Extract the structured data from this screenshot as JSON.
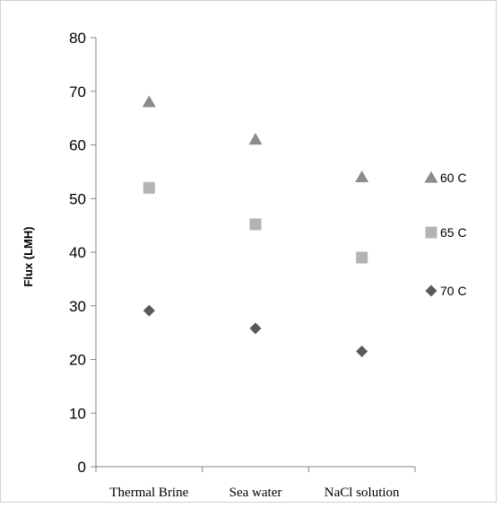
{
  "chart_data": {
    "type": "scatter",
    "title": "",
    "xlabel": "",
    "ylabel": "Flux (LMH)",
    "categories": [
      "Thermal Brine",
      "Sea water",
      "NaCl solution"
    ],
    "ylim": [
      0,
      80
    ],
    "yticks": [
      0,
      10,
      20,
      30,
      40,
      50,
      60,
      70,
      80
    ],
    "grid": false,
    "legend_position": "right",
    "series": [
      {
        "name": "60 C",
        "marker": "triangle",
        "color": "#8c8c8c",
        "values": [
          68,
          61,
          54
        ]
      },
      {
        "name": "65 C",
        "marker": "square",
        "color": "#b3b3b3",
        "values": [
          52,
          45.2,
          39
        ]
      },
      {
        "name": "70 C",
        "marker": "diamond",
        "color": "#595959",
        "values": [
          29.1,
          25.8,
          21.5
        ]
      }
    ]
  }
}
